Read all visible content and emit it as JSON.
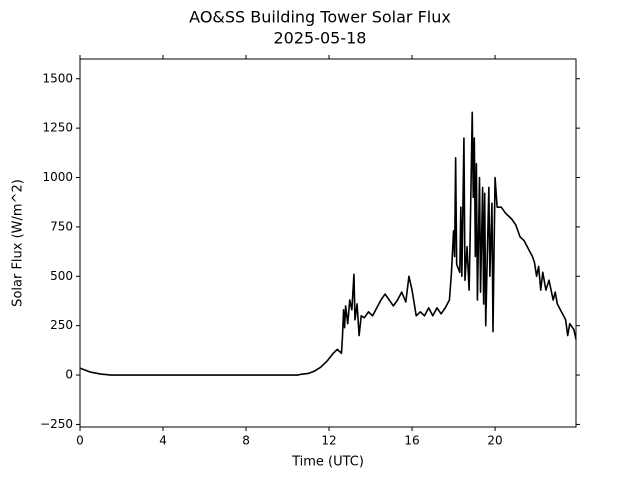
{
  "chart_data": {
    "type": "line",
    "title": "AO&SS Building Tower Solar Flux",
    "subtitle": "2025-05-18",
    "x_label": "Time (UTC)",
    "y_label": "Solar Flux (W/m^2)",
    "xlim": [
      0,
      23.9
    ],
    "xticks": [
      0,
      4,
      8,
      12,
      16,
      20
    ],
    "ylim": [
      -263,
      1600
    ],
    "yticks": [
      {
        "value": -250,
        "label": "−250"
      },
      0,
      250,
      500,
      750,
      1000,
      1250,
      1500
    ],
    "grid": false,
    "series": [
      {
        "name": "Solar Flux",
        "color": "#000000",
        "x": [
          0,
          0.5,
          1,
          1.5,
          3,
          6,
          9,
          10.5,
          10.6,
          11,
          11.3,
          11.6,
          11.9,
          12.2,
          12.4,
          12.6,
          12.65,
          12.7,
          12.75,
          12.8,
          12.9,
          13.0,
          13.1,
          13.2,
          13.25,
          13.35,
          13.45,
          13.55,
          13.7,
          13.9,
          14.1,
          14.3,
          14.5,
          14.7,
          14.9,
          15.1,
          15.3,
          15.5,
          15.7,
          15.85,
          16.0,
          16.2,
          16.4,
          16.6,
          16.8,
          17.0,
          17.2,
          17.4,
          17.6,
          17.8,
          17.9,
          18.0,
          18.05,
          18.1,
          18.15,
          18.3,
          18.35,
          18.4,
          18.5,
          18.55,
          18.65,
          18.75,
          18.8,
          18.9,
          18.95,
          19.0,
          19.05,
          19.1,
          19.15,
          19.25,
          19.3,
          19.4,
          19.45,
          19.5,
          19.55,
          19.7,
          19.75,
          19.85,
          19.9,
          19.95,
          20.0,
          20.1,
          20.3,
          20.5,
          20.8,
          21.0,
          21.2,
          21.4,
          21.6,
          21.8,
          21.9,
          22.0,
          22.1,
          22.2,
          22.3,
          22.45,
          22.6,
          22.8,
          22.9,
          23.0,
          23.2,
          23.4,
          23.5,
          23.6,
          23.8,
          23.9
        ],
        "values": [
          35,
          15,
          5,
          0,
          0,
          0,
          0,
          0,
          3,
          8,
          20,
          40,
          70,
          110,
          130,
          110,
          200,
          330,
          240,
          350,
          260,
          380,
          330,
          510,
          280,
          360,
          200,
          300,
          290,
          320,
          300,
          340,
          380,
          410,
          380,
          350,
          380,
          420,
          370,
          500,
          430,
          300,
          320,
          300,
          340,
          300,
          340,
          310,
          340,
          380,
          520,
          730,
          600,
          1100,
          560,
          520,
          850,
          500,
          1200,
          480,
          650,
          430,
          700,
          1330,
          900,
          1200,
          600,
          1070,
          380,
          1000,
          420,
          950,
          360,
          920,
          250,
          950,
          500,
          870,
          220,
          620,
          1000,
          850,
          850,
          820,
          790,
          760,
          700,
          680,
          640,
          600,
          570,
          500,
          550,
          430,
          520,
          430,
          480,
          380,
          420,
          360,
          320,
          280,
          200,
          260,
          230,
          180
        ]
      }
    ]
  }
}
